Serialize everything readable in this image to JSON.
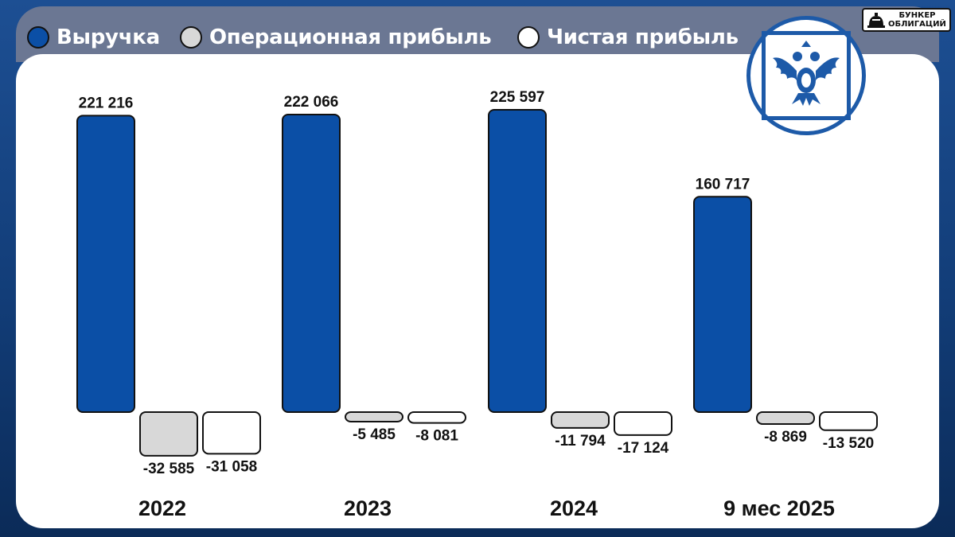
{
  "legend": {
    "items": [
      {
        "label": "Выручка",
        "color": "#0b4fa6"
      },
      {
        "label": "Операционная прибыль",
        "color": "#d8d8d8"
      },
      {
        "label": "Чистая прибыль",
        "color": "#ffffff"
      }
    ]
  },
  "brand": {
    "line1": "БУНКЕР",
    "line2": "ОБЛИГАЦИЙ",
    "icon": "bunker-icon"
  },
  "logo": {
    "icon": "double-headed-eagle-emblem",
    "color": "#1d5aa8"
  },
  "chart_data": {
    "type": "bar",
    "categories": [
      "2022",
      "2023",
      "2024",
      "9 мес 2025"
    ],
    "series": [
      {
        "name": "Выручка",
        "color": "#0b4fa6",
        "values": [
          221216,
          222066,
          225597,
          160717
        ],
        "labels": [
          "221 216",
          "222 066",
          "225 597",
          "160 717"
        ]
      },
      {
        "name": "Операционная прибыль",
        "color": "#d8d8d8",
        "values": [
          -32585,
          -5485,
          -11794,
          -8869
        ],
        "labels": [
          "-32 585",
          "-5 485",
          "-11 794",
          "-8 869"
        ]
      },
      {
        "name": "Чистая прибыль",
        "color": "#ffffff",
        "values": [
          -31058,
          -8081,
          -17124,
          -13520
        ],
        "labels": [
          "-31 058",
          "-8 081",
          "-17 124",
          "-13 520"
        ]
      }
    ],
    "legend_position": "top-left",
    "grid": false,
    "axes_visible": false
  }
}
